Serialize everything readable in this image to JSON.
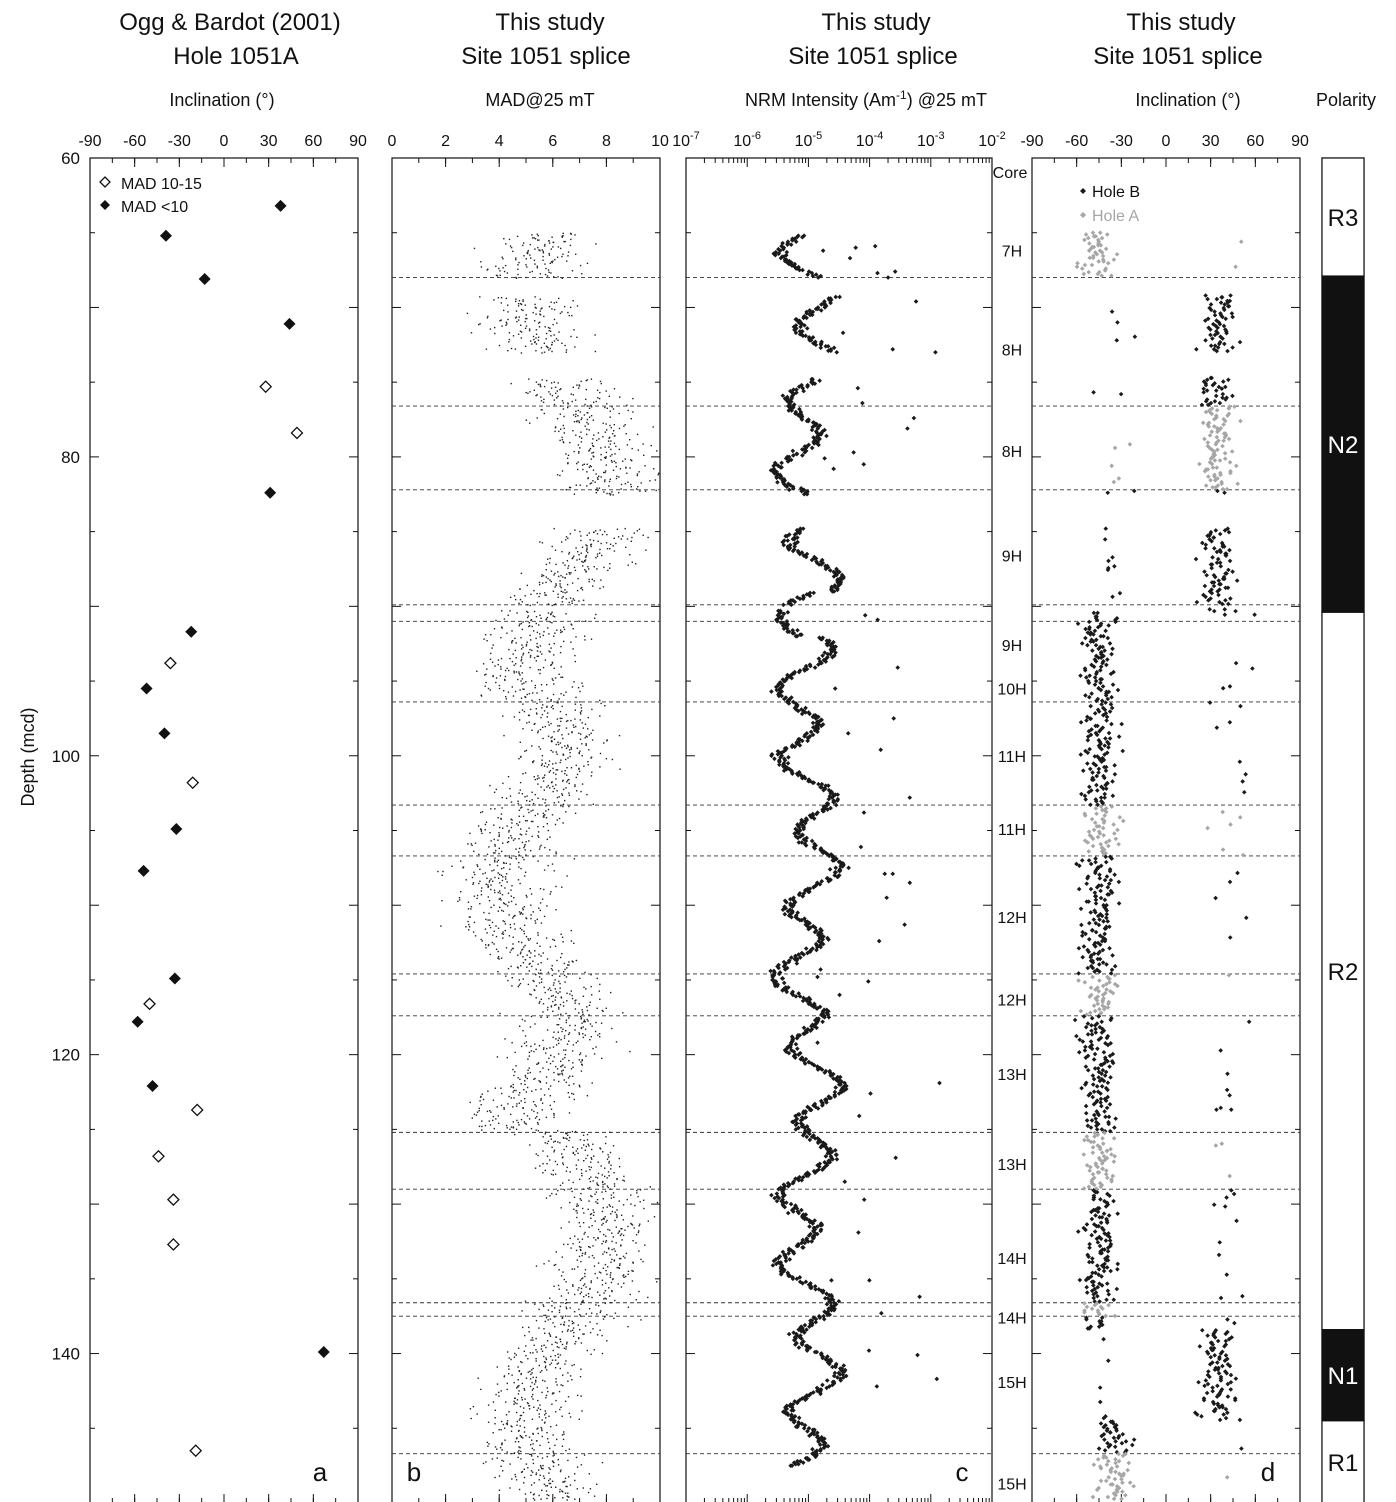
{
  "shared": {
    "y_axis_label": "Depth (mcd)",
    "y_ticks": [
      "60",
      "80",
      "100",
      "120",
      "140"
    ],
    "ylim": [
      60,
      150
    ]
  },
  "chart_data": [
    {
      "id": "a",
      "type": "scatter",
      "title_line1": "Ogg & Bardot (2001)",
      "title_line2": "Hole 1051A",
      "xlabel": "Inclination (°)",
      "xlim": [
        -90,
        90
      ],
      "x_ticks": [
        "-90",
        "-60",
        "-30",
        "0",
        "30",
        "60",
        "90"
      ],
      "panel_letter": "a",
      "legend": [
        {
          "label": "MAD 10-15",
          "marker": "open-diamond"
        },
        {
          "label": "MAD <10",
          "marker": "filled-diamond"
        }
      ],
      "series": [
        {
          "marker": "filled-diamond",
          "points": [
            [
              38,
              63.2
            ],
            [
              -39,
              65.2
            ],
            [
              -13,
              68.1
            ],
            [
              44,
              71.1
            ],
            [
              31,
              82.4
            ],
            [
              -22,
              91.7
            ],
            [
              -52,
              95.5
            ],
            [
              -40,
              98.5
            ],
            [
              -32,
              104.9
            ],
            [
              -54,
              107.7
            ],
            [
              -33,
              114.9
            ],
            [
              -58,
              117.8
            ],
            [
              -48,
              122.1
            ],
            [
              67,
              139.9
            ]
          ]
        },
        {
          "marker": "open-diamond",
          "points": [
            [
              28,
              75.3
            ],
            [
              49,
              78.4
            ],
            [
              -36,
              93.8
            ],
            [
              -21,
              101.8
            ],
            [
              -50,
              116.6
            ],
            [
              -18,
              123.7
            ],
            [
              -44,
              126.8
            ],
            [
              -34,
              129.7
            ],
            [
              -34,
              132.7
            ],
            [
              -19,
              146.5
            ]
          ]
        }
      ]
    },
    {
      "id": "b",
      "type": "scatter",
      "title_line1": "This study",
      "title_line2": "Site 1051 splice",
      "xlabel": "MAD@25 mT",
      "xlim": [
        0,
        10
      ],
      "x_ticks": [
        "0",
        "2",
        "4",
        "6",
        "8",
        "10"
      ],
      "panel_letter": "b"
    },
    {
      "id": "c",
      "type": "scatter",
      "title_line1": "This study",
      "title_line2": "Site 1051 splice",
      "xlabel": "NRM Intensity (Am-1) @25 mT",
      "x_scale": "log",
      "xlim": [
        1e-07,
        0.01
      ],
      "x_ticks": [
        "10-7",
        "10-6",
        "10-5",
        "10-4",
        "10-3",
        "10-2"
      ],
      "panel_letter": "c"
    },
    {
      "id": "d",
      "type": "scatter",
      "title_line1": "This study",
      "title_line2": "Site 1051 splice",
      "xlabel": "Inclination (°)",
      "xlim": [
        -90,
        90
      ],
      "x_ticks": [
        "-90",
        "-60",
        "-30",
        "0",
        "30",
        "60",
        "90"
      ],
      "panel_letter": "d",
      "legend": [
        {
          "label": "Hole B",
          "color": "#1a1a1a"
        },
        {
          "label": "Hole A",
          "color": "#a6a6a6"
        }
      ]
    }
  ],
  "cores": {
    "header": "Core",
    "labels": [
      {
        "label": "7H",
        "depth": 66.2
      },
      {
        "label": "8H",
        "depth": 72.8
      },
      {
        "label": "8H",
        "depth": 79.6
      },
      {
        "label": "9H",
        "depth": 86.6
      },
      {
        "label": "9H",
        "depth": 92.6
      },
      {
        "label": "10H",
        "depth": 95.5
      },
      {
        "label": "11H",
        "depth": 100.0
      },
      {
        "label": "11H",
        "depth": 104.9
      },
      {
        "label": "12H",
        "depth": 110.8
      },
      {
        "label": "12H",
        "depth": 116.3
      },
      {
        "label": "13H",
        "depth": 121.3
      },
      {
        "label": "13H",
        "depth": 127.3
      },
      {
        "label": "14H",
        "depth": 133.6
      },
      {
        "label": "14H",
        "depth": 137.6
      },
      {
        "label": "15H",
        "depth": 141.9
      },
      {
        "label": "15H",
        "depth": 148.7
      }
    ],
    "break_depths": [
      68.0,
      76.6,
      82.2,
      89.9,
      91.0,
      96.4,
      103.3,
      106.7,
      114.6,
      117.4,
      125.2,
      129.0,
      136.6,
      137.5,
      146.7
    ]
  },
  "polarity": {
    "header": "Polarity",
    "zones": [
      {
        "name": "R3",
        "top": 60.0,
        "bottom": 67.9,
        "type": "reversed"
      },
      {
        "name": "N2",
        "top": 67.9,
        "bottom": 90.4,
        "type": "normal"
      },
      {
        "name": "R2",
        "top": 90.4,
        "bottom": 138.4,
        "type": "reversed"
      },
      {
        "name": "N1",
        "top": 138.4,
        "bottom": 144.5,
        "type": "normal"
      },
      {
        "name": "R1",
        "top": 144.5,
        "bottom": 150.0,
        "type": "reversed"
      }
    ]
  }
}
